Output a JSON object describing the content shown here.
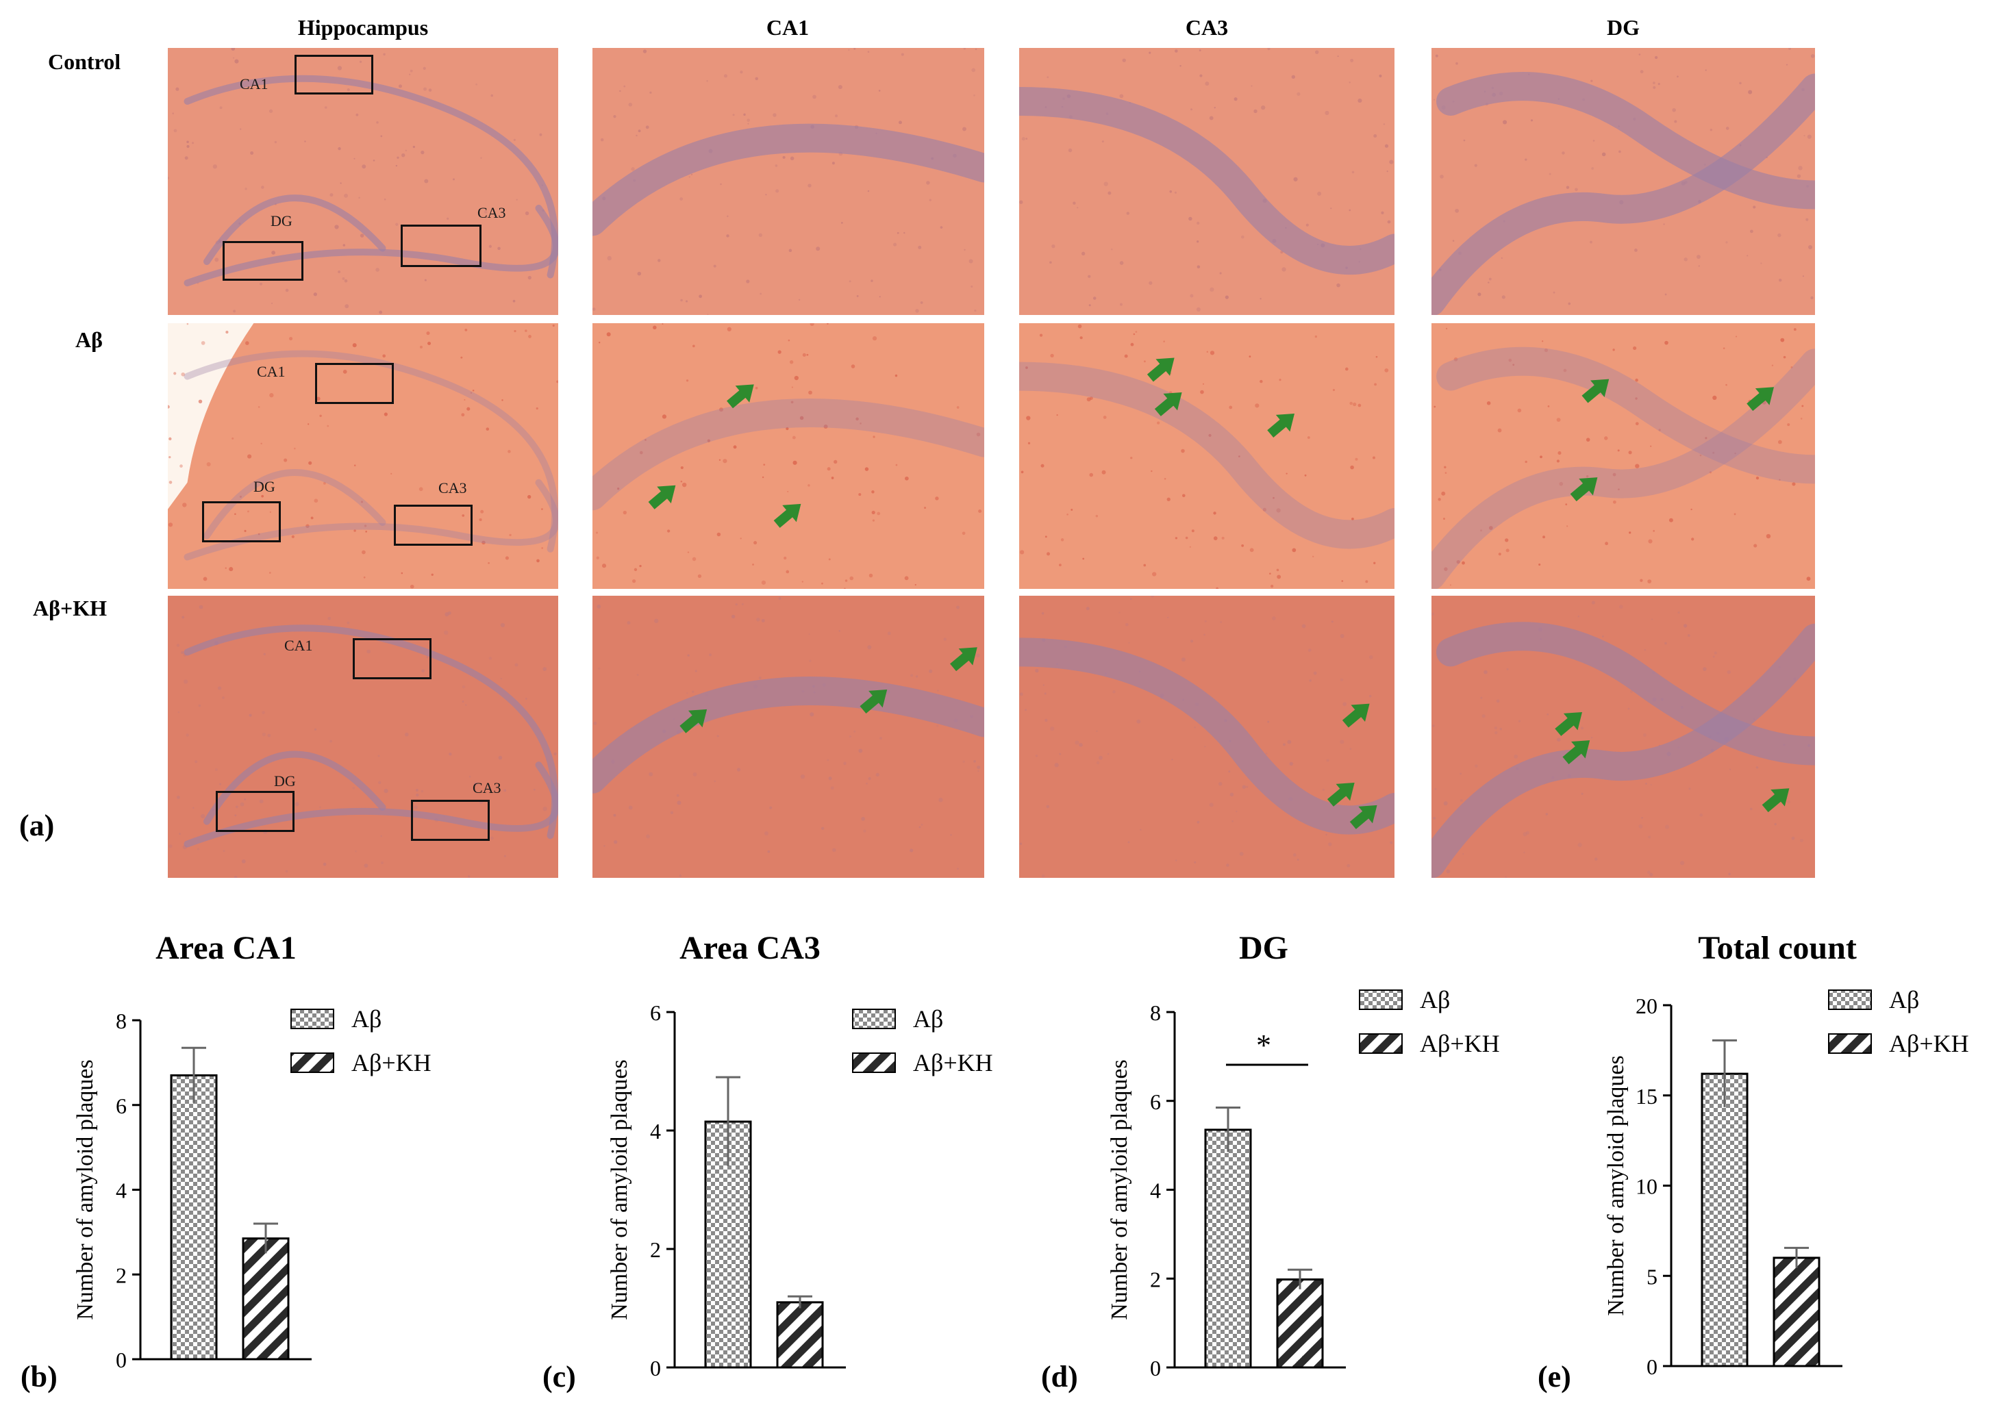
{
  "figure": {
    "panel_a_label": "(a)",
    "column_headers": [
      "Hippocampus",
      "CA1",
      "CA3",
      "DG"
    ],
    "row_labels": [
      "Control",
      "Aβ",
      "Aβ+KH"
    ],
    "region_box_labels": {
      "ca1": "CA1",
      "ca3": "CA3",
      "dg": "DG"
    },
    "colors": {
      "tissue": "#e8957c",
      "cell_layer": "#9a7fa6",
      "arrow": "#2e8b2e",
      "tissue_ab": "#ee9a7a",
      "tissue_abkh": "#dd7f68"
    }
  },
  "legend": {
    "ab": "Aβ",
    "abkh": "Aβ+KH",
    "sig": "*"
  },
  "chart_data": [
    {
      "panel": "(b)",
      "type": "bar",
      "title": "Area CA1",
      "ylabel": "Number of amyloid plaques",
      "ylim": [
        0,
        8
      ],
      "yticks": [
        0,
        2,
        4,
        6,
        8
      ],
      "series": [
        {
          "name": "Aβ",
          "value": 6.7,
          "error": 0.65,
          "pattern": "checker"
        },
        {
          "name": "Aβ+KH",
          "value": 2.85,
          "error": 0.35,
          "pattern": "hatch"
        }
      ]
    },
    {
      "panel": "(c)",
      "type": "bar",
      "title": "Area CA3",
      "ylabel": "Number of amyloid plaques",
      "ylim": [
        0,
        6
      ],
      "yticks": [
        0,
        2,
        4,
        6
      ],
      "series": [
        {
          "name": "Aβ",
          "value": 4.15,
          "error": 0.75,
          "pattern": "checker"
        },
        {
          "name": "Aβ+KH",
          "value": 1.1,
          "error": 0.1,
          "pattern": "hatch"
        }
      ]
    },
    {
      "panel": "(d)",
      "type": "bar",
      "title": "DG",
      "ylabel": "Number of amyloid plaques",
      "ylim": [
        0,
        8
      ],
      "yticks": [
        0,
        2,
        4,
        6,
        8
      ],
      "significance": "*",
      "series": [
        {
          "name": "Aβ",
          "value": 5.35,
          "error": 0.5,
          "pattern": "checker"
        },
        {
          "name": "Aβ+KH",
          "value": 1.98,
          "error": 0.22,
          "pattern": "hatch"
        }
      ]
    },
    {
      "panel": "(e)",
      "type": "bar",
      "title": "Total count",
      "ylabel": "Number of amyloid plaques",
      "ylim": [
        0,
        20
      ],
      "yticks": [
        0,
        5,
        10,
        15,
        20
      ],
      "series": [
        {
          "name": "Aβ",
          "value": 16.2,
          "error": 1.85,
          "pattern": "checker"
        },
        {
          "name": "Aβ+KH",
          "value": 6.0,
          "error": 0.55,
          "pattern": "hatch"
        }
      ]
    }
  ]
}
